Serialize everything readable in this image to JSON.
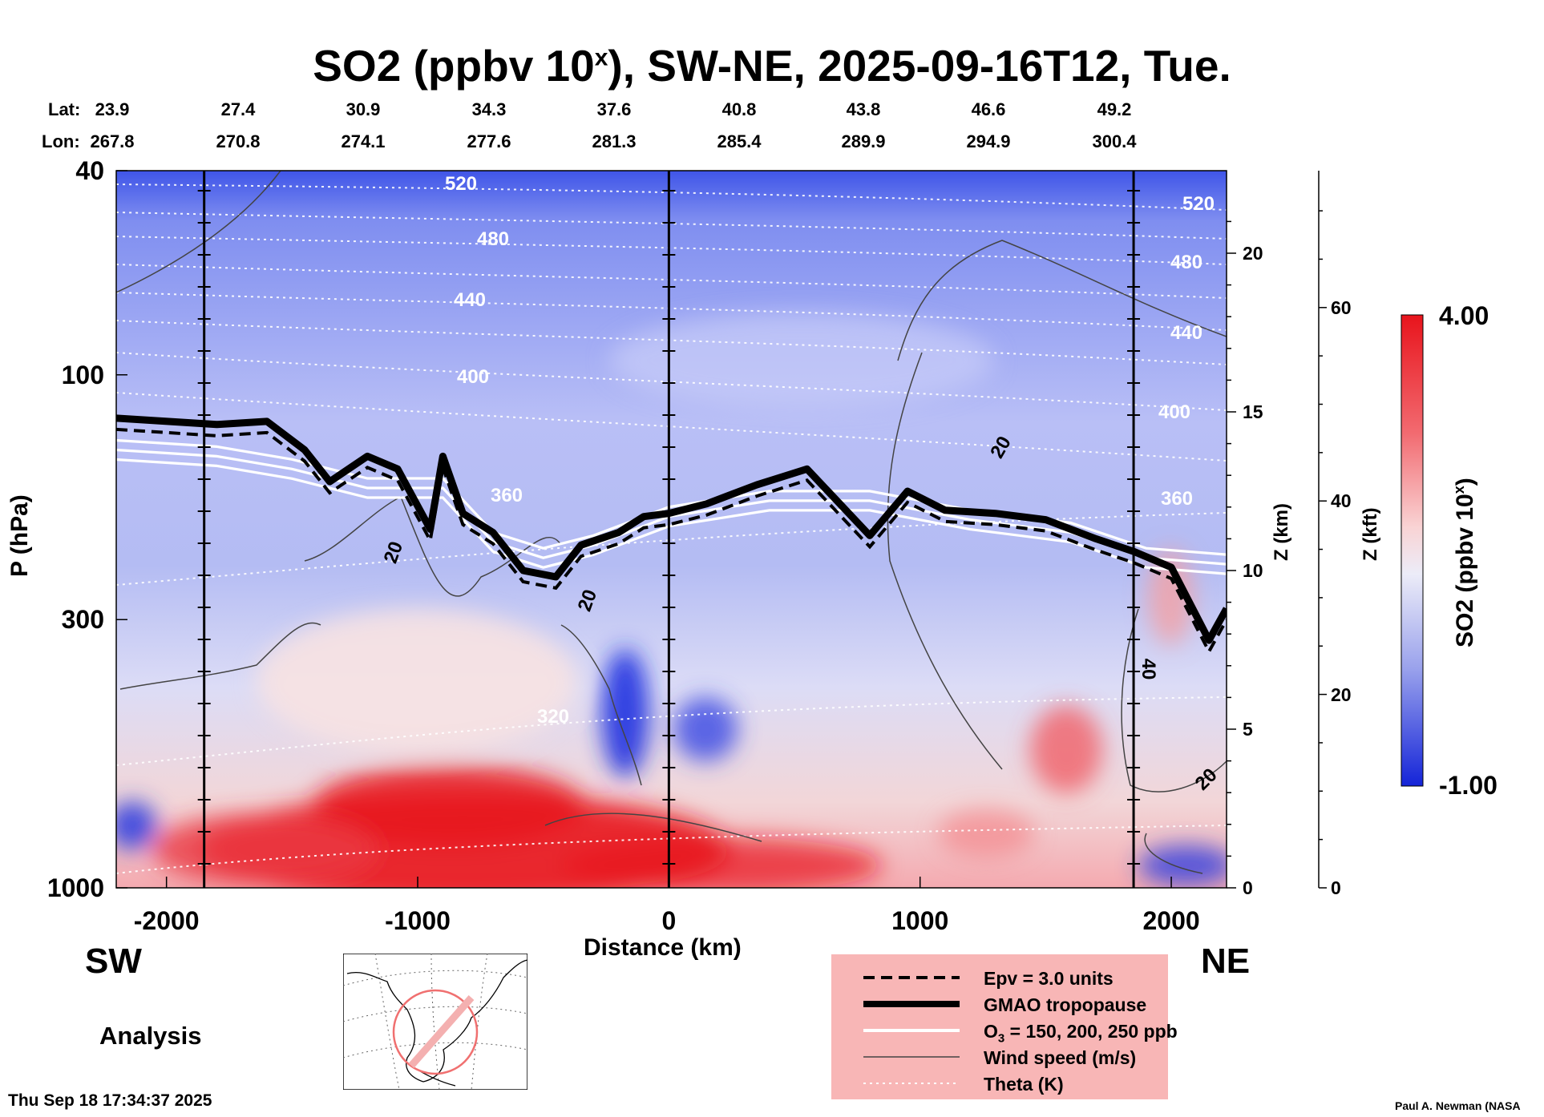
{
  "title": {
    "main": "SO2 (ppbv 10",
    "sup": "x",
    "rest": "), SW-NE, 2025-09-16T12, Tue."
  },
  "header": {
    "lat_label": "Lat:",
    "lon_label": "Lon:",
    "lat": [
      "23.9",
      "27.4",
      "30.9",
      "34.3",
      "37.6",
      "40.8",
      "43.8",
      "46.6",
      "49.2"
    ],
    "lon": [
      "267.8",
      "270.8",
      "274.1",
      "277.6",
      "281.3",
      "285.4",
      "289.9",
      "294.9",
      "300.4"
    ]
  },
  "chart_data": {
    "type": "heatmap",
    "title": "SO2 (ppbv 10^x), SW-NE, 2025-09-16T12, Tue.",
    "xlabel": "Distance (km)",
    "ylabel": "P (hPa)",
    "z_label": "Z (km)",
    "zf_label": "Z (kft)",
    "colorbar_label": "SO2 (ppbv 10^x)",
    "xlim": [
      -2200,
      2220
    ],
    "ylim_hpa": [
      1000,
      40
    ],
    "x_ticks": [
      "-2000",
      "-1000",
      "0",
      "1000",
      "2000"
    ],
    "x_tick_values": [
      -2000,
      -1000,
      0,
      1000,
      2000
    ],
    "p_ticks": [
      "40",
      "100",
      "300",
      "1000"
    ],
    "p_tick_values": [
      40,
      100,
      300,
      1000
    ],
    "z_ticks": [
      "0",
      "5",
      "10",
      "15",
      "20"
    ],
    "z_tick_values": [
      0,
      5,
      10,
      15,
      20
    ],
    "zf_ticks": [
      "0",
      "20",
      "40",
      "60"
    ],
    "zf_tick_values": [
      0,
      20,
      40,
      60
    ],
    "colorbar": {
      "min": "-1.00",
      "max": "4.00",
      "min_value": -1.0,
      "max_value": 4.0
    },
    "theta_labels": [
      "520",
      "480",
      "440",
      "400",
      "360",
      "320",
      "520",
      "480",
      "440",
      "400",
      "360"
    ],
    "wind_labels": [
      "20",
      "20",
      "20",
      "40",
      "20"
    ],
    "tropopause_km": [
      [
        -2200,
        14.8
      ],
      [
        -1800,
        14.6
      ],
      [
        -1600,
        14.7
      ],
      [
        -1450,
        13.8
      ],
      [
        -1350,
        12.8
      ],
      [
        -1200,
        13.6
      ],
      [
        -1080,
        13.2
      ],
      [
        -950,
        11.3
      ],
      [
        -900,
        13.6
      ],
      [
        -820,
        11.8
      ],
      [
        -700,
        11.2
      ],
      [
        -580,
        10.0
      ],
      [
        -450,
        9.8
      ],
      [
        -350,
        10.8
      ],
      [
        -200,
        11.2
      ],
      [
        -100,
        11.7
      ],
      [
        0,
        11.8
      ],
      [
        150,
        12.1
      ],
      [
        350,
        12.7
      ],
      [
        550,
        13.2
      ],
      [
        800,
        11.1
      ],
      [
        950,
        12.5
      ],
      [
        1100,
        11.9
      ],
      [
        1300,
        11.8
      ],
      [
        1500,
        11.6
      ],
      [
        1700,
        11.0
      ],
      [
        1850,
        10.6
      ],
      [
        2000,
        10.1
      ],
      [
        2150,
        7.8
      ],
      [
        2220,
        8.8
      ]
    ],
    "o3_km": [
      [
        -2200,
        13.8
      ],
      [
        -1800,
        13.6
      ],
      [
        -1500,
        13.2
      ],
      [
        -1200,
        12.6
      ],
      [
        -900,
        12.6
      ],
      [
        -700,
        10.9
      ],
      [
        -500,
        10.4
      ],
      [
        -300,
        10.8
      ],
      [
        0,
        11.7
      ],
      [
        400,
        12.2
      ],
      [
        800,
        12.2
      ],
      [
        1200,
        11.6
      ],
      [
        1600,
        11.2
      ],
      [
        1900,
        10.4
      ],
      [
        2220,
        10.2
      ]
    ],
    "legend": [
      {
        "style": "dashed",
        "label": "Epv = 3.0 units"
      },
      {
        "style": "thick",
        "label": "GMAO tropopause"
      },
      {
        "style": "white",
        "label": "O3 = 150, 200, 250 ppb"
      },
      {
        "style": "thin",
        "label": "Wind speed (m/s)"
      },
      {
        "style": "dotted",
        "label": "Theta (K)"
      }
    ],
    "legend_o3": {
      "pre": "O",
      "sub": "3",
      "post": " = 150, 200, 250 ppb"
    }
  },
  "labels": {
    "sw": "SW",
    "ne": "NE",
    "analysis": "Analysis",
    "timestamp": "Thu Sep 18 17:34:37 2025",
    "credit": "Paul A. Newman (NASA"
  }
}
